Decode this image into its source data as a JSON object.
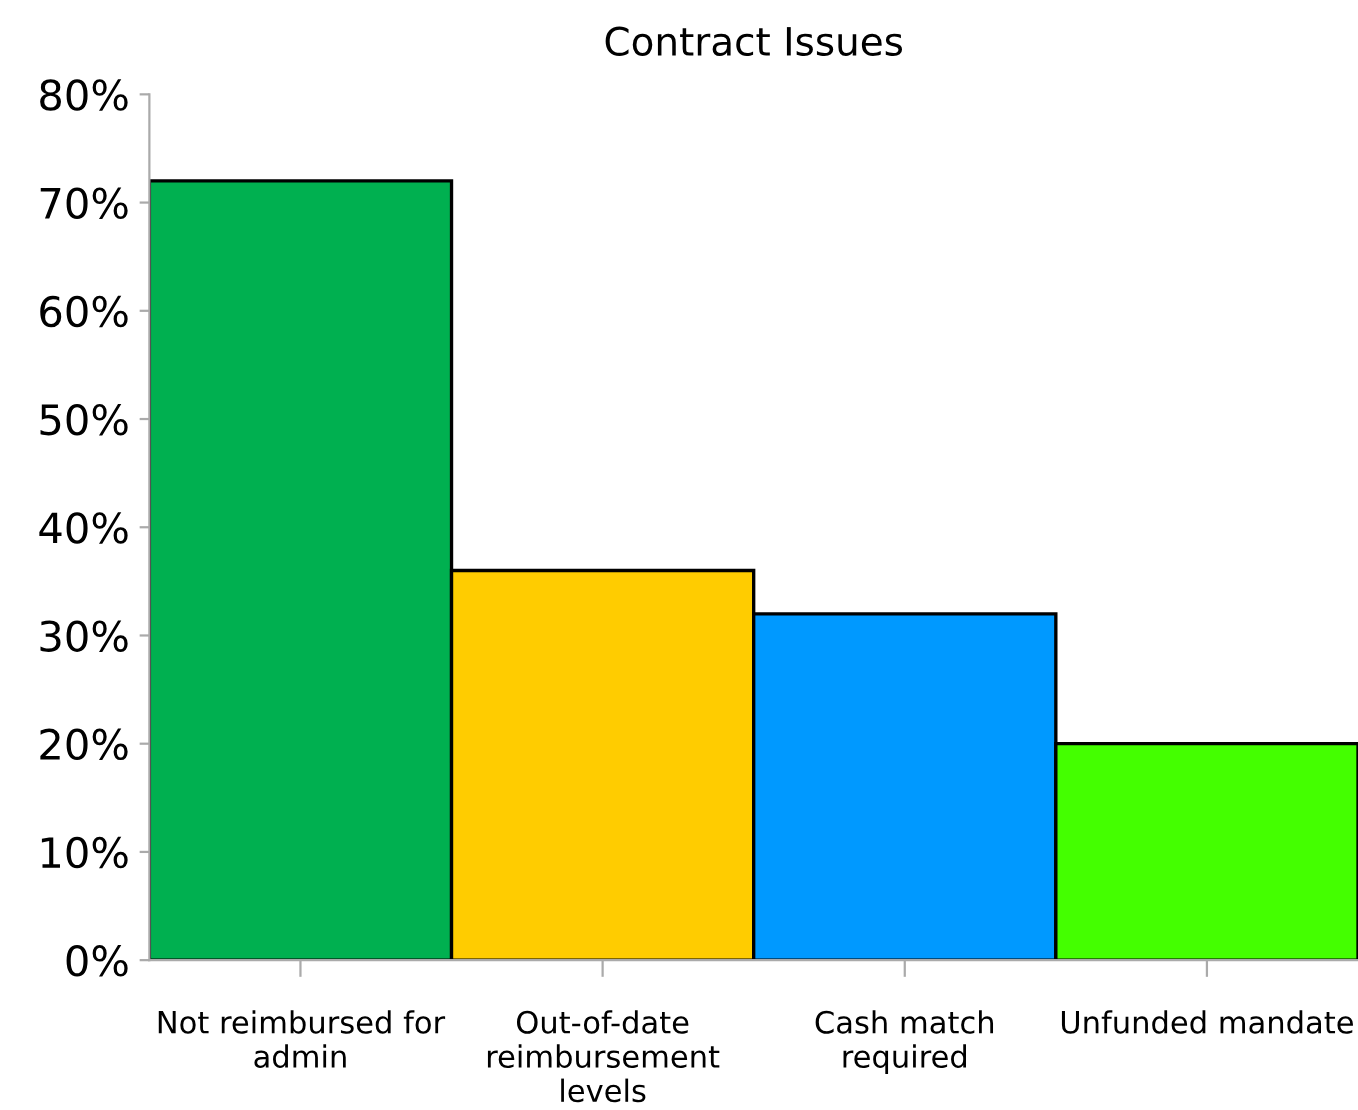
{
  "chart_data": {
    "type": "bar",
    "title": "Contract Issues",
    "categories": [
      "Not reimbursed for\nadmin",
      "Out-of-date\nreimbursement\nlevels",
      "Cash match\nrequired",
      "Unfunded mandate"
    ],
    "values": [
      72,
      36,
      32,
      20
    ],
    "colors": [
      "#00b050",
      "#ffcc00",
      "#0099ff",
      "#44ff00"
    ],
    "ylim": [
      0,
      80
    ],
    "yticks": [
      {
        "value": 0,
        "label": "0%"
      },
      {
        "value": 10,
        "label": "10%"
      },
      {
        "value": 20,
        "label": "20%"
      },
      {
        "value": 30,
        "label": "30%"
      },
      {
        "value": 40,
        "label": "40%"
      },
      {
        "value": 50,
        "label": "50%"
      },
      {
        "value": 60,
        "label": "60%"
      },
      {
        "value": 70,
        "label": "70%"
      },
      {
        "value": 80,
        "label": "80%"
      }
    ],
    "grid": false,
    "legend": false
  }
}
